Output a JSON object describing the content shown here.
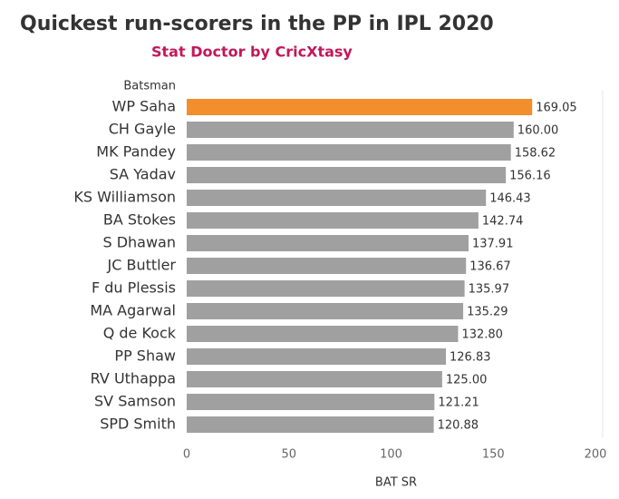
{
  "chart_data": {
    "type": "hbar",
    "title": "Quickest run-scorers in the PP in IPL 2020",
    "subtitle": "Stat Doctor by CricXtasy",
    "y_label": "Batsman",
    "x_label": "BAT SR",
    "categories": [
      "WP Saha",
      "CH Gayle",
      "MK Pandey",
      "SA Yadav",
      "KS Williamson",
      "BA Stokes",
      "S Dhawan",
      "JC Buttler",
      "F du Plessis",
      "MA Agarwal",
      "Q de Kock",
      "PP Shaw",
      "RV Uthappa",
      "SV Samson",
      "SPD Smith"
    ],
    "values": [
      169.05,
      160,
      158.62,
      156.16,
      146.43,
      142.74,
      137.91,
      136.67,
      135.97,
      135.29,
      132.8,
      126.83,
      125,
      121.21,
      120.88
    ],
    "value_labels": [
      "169.05",
      "160.00",
      "158.62",
      "156.16",
      "146.43",
      "142.74",
      "137.91",
      "136.67",
      "135.97",
      "135.29",
      "132.80",
      "126.83",
      "125.00",
      "121.21",
      "120.88"
    ],
    "colors": [
      "#f28e2b",
      "#a0a0a0",
      "#a0a0a0",
      "#a0a0a0",
      "#a0a0a0",
      "#a0a0a0",
      "#a0a0a0",
      "#a0a0a0",
      "#a0a0a0",
      "#a0a0a0",
      "#a0a0a0",
      "#a0a0a0",
      "#a0a0a0",
      "#a0a0a0",
      "#a0a0a0"
    ],
    "xlim": [
      0,
      200
    ],
    "xticks": [
      0,
      50,
      100,
      150,
      200
    ],
    "grid": false
  }
}
